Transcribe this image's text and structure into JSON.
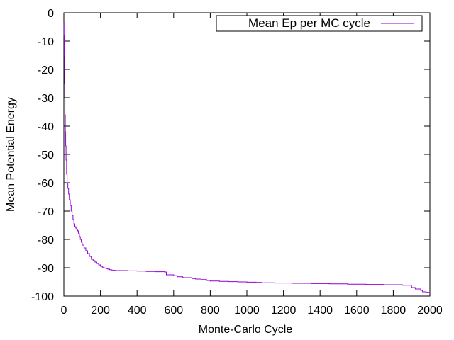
{
  "chart_data": {
    "type": "line",
    "title": "",
    "xlabel": "Monte-Carlo Cycle",
    "ylabel": "Mean Potential Energy",
    "xlim": [
      0,
      2000
    ],
    "ylim": [
      -100,
      0
    ],
    "xticks": [
      0,
      200,
      400,
      600,
      800,
      1000,
      1200,
      1400,
      1600,
      1800,
      2000
    ],
    "yticks": [
      0,
      -10,
      -20,
      -30,
      -40,
      -50,
      -60,
      -70,
      -80,
      -90,
      -100
    ],
    "grid": false,
    "legend_position": "top-right",
    "series": [
      {
        "name": "Mean Ep per MC cycle",
        "color": "#9400d3",
        "step": true,
        "x": [
          0,
          1,
          2,
          3,
          4,
          5,
          6,
          8,
          10,
          12,
          15,
          18,
          22,
          26,
          30,
          35,
          40,
          45,
          50,
          55,
          60,
          65,
          70,
          75,
          80,
          85,
          90,
          95,
          100,
          110,
          120,
          130,
          140,
          150,
          160,
          170,
          180,
          190,
          200,
          210,
          220,
          230,
          240,
          250,
          260,
          270,
          280,
          290,
          300,
          350,
          400,
          450,
          500,
          550,
          560,
          600,
          620,
          650,
          700,
          720,
          750,
          780,
          800,
          850,
          900,
          950,
          1000,
          1050,
          1080,
          1100,
          1150,
          1200,
          1250,
          1300,
          1350,
          1400,
          1450,
          1500,
          1550,
          1600,
          1650,
          1700,
          1750,
          1800,
          1850,
          1900,
          1920,
          1950,
          1960,
          1980,
          2000
        ],
        "y": [
          -3.5,
          -8,
          -15,
          -20,
          -25,
          -30,
          -36,
          -42,
          -47,
          -52,
          -57,
          -60,
          -62,
          -64,
          -66,
          -68,
          -70,
          -71.5,
          -73,
          -74.5,
          -75.5,
          -76,
          -76.5,
          -77,
          -78,
          -79,
          -80,
          -81,
          -82,
          -83,
          -84,
          -85,
          -86,
          -87,
          -87.5,
          -88,
          -88.5,
          -89,
          -89.5,
          -89.8,
          -90.1,
          -90.3,
          -90.5,
          -90.7,
          -90.8,
          -90.9,
          -91,
          -91,
          -91,
          -91.1,
          -91.2,
          -91.3,
          -91.4,
          -91.5,
          -92.5,
          -92.8,
          -93.2,
          -93.5,
          -93.8,
          -94,
          -94.2,
          -94.5,
          -94.7,
          -94.8,
          -94.9,
          -95,
          -95.1,
          -95.2,
          -95.3,
          -95.3,
          -95.4,
          -95.4,
          -95.5,
          -95.5,
          -95.6,
          -95.6,
          -95.7,
          -95.7,
          -95.8,
          -95.8,
          -95.9,
          -95.9,
          -96,
          -96,
          -96.2,
          -97,
          -97.5,
          -98,
          -98.5,
          -98.7,
          -98.8
        ]
      }
    ]
  }
}
